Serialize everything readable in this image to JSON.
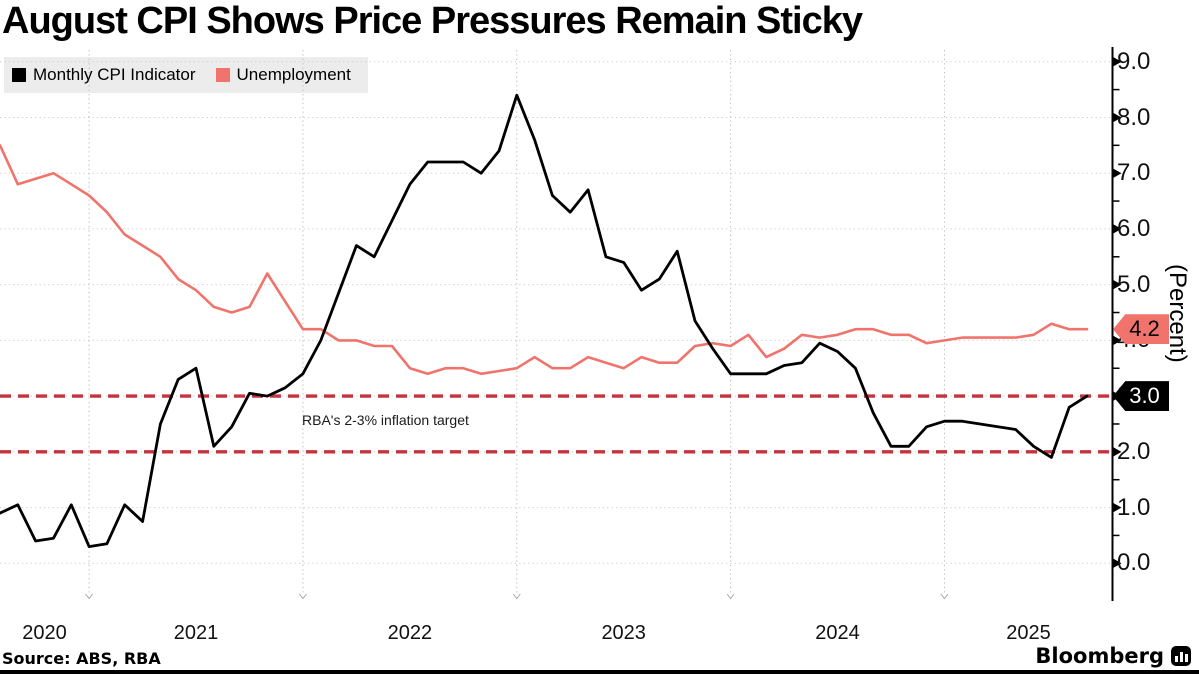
{
  "title": "August CPI Shows Price Pressures Remain Sticky",
  "legend": {
    "items": [
      {
        "label": "Monthly CPI Indicator",
        "color": "#000000"
      },
      {
        "label": "Unemployment",
        "color": "#f0746c"
      }
    ]
  },
  "annotation": "RBA's 2-3% inflation target",
  "badges": {
    "unemployment": {
      "text": "4.2",
      "value": 4.2,
      "bg": "#f0746c",
      "fg": "#000000"
    },
    "cpi": {
      "text": "3.0",
      "value": 3.0,
      "bg": "#000000",
      "fg": "#ffffff"
    }
  },
  "y_axis": {
    "title": "(Percent)",
    "tick_labels": [
      "9.0",
      "8.0",
      "7.0",
      "6.0",
      "5.0",
      "4.0",
      "3.0",
      "2.0",
      "1.0",
      "0.0"
    ]
  },
  "x_axis": {
    "year_labels": [
      "2020",
      "2021",
      "2022",
      "2023",
      "2024",
      "2025"
    ]
  },
  "source": "Source: ABS, RBA",
  "logo_text": "Bloomberg",
  "colors": {
    "cpi_line": "#000000",
    "unemployment_line": "#f0746c",
    "target_dash": "#c4343f",
    "grid_horizontal": "#cbcbcb",
    "grid_vertical": "#b8b8b8",
    "legend_bg": "#ececec"
  },
  "chart_data": {
    "type": "line",
    "title": "August CPI Shows Price Pressures Remain Sticky",
    "ylabel": "(Percent)",
    "ylim": [
      0,
      9.5
    ],
    "yticks": [
      0,
      1,
      2,
      3,
      4,
      5,
      6,
      7,
      8,
      9
    ],
    "grid": true,
    "legend_position": "top-left",
    "x_unit": "month",
    "months": [
      "2020-07",
      "2020-08",
      "2020-09",
      "2020-10",
      "2020-11",
      "2020-12",
      "2021-01",
      "2021-02",
      "2021-03",
      "2021-04",
      "2021-05",
      "2021-06",
      "2021-07",
      "2021-08",
      "2021-09",
      "2021-10",
      "2021-11",
      "2021-12",
      "2022-01",
      "2022-02",
      "2022-03",
      "2022-04",
      "2022-05",
      "2022-06",
      "2022-07",
      "2022-08",
      "2022-09",
      "2022-10",
      "2022-11",
      "2022-12",
      "2023-01",
      "2023-02",
      "2023-03",
      "2023-04",
      "2023-05",
      "2023-06",
      "2023-07",
      "2023-08",
      "2023-09",
      "2023-10",
      "2023-11",
      "2023-12",
      "2024-01",
      "2024-02",
      "2024-03",
      "2024-04",
      "2024-05",
      "2024-06",
      "2024-07",
      "2024-08",
      "2024-09",
      "2024-10",
      "2024-11",
      "2024-12",
      "2025-01",
      "2025-02",
      "2025-03",
      "2025-04",
      "2025-05",
      "2025-06",
      "2025-07",
      "2025-08"
    ],
    "series": [
      {
        "name": "Monthly CPI Indicator",
        "color": "#000000",
        "values": [
          0.9,
          1.05,
          0.4,
          0.45,
          1.05,
          0.3,
          0.35,
          1.05,
          0.75,
          2.5,
          3.3,
          3.5,
          2.1,
          2.45,
          3.05,
          3.0,
          3.15,
          3.4,
          4.0,
          4.85,
          5.7,
          5.5,
          6.15,
          6.8,
          7.2,
          7.2,
          7.2,
          7.0,
          7.4,
          8.4,
          7.6,
          6.6,
          6.3,
          6.7,
          5.5,
          5.4,
          4.9,
          5.1,
          5.6,
          4.35,
          3.85,
          3.4,
          3.4,
          3.4,
          3.55,
          3.6,
          3.95,
          3.8,
          3.5,
          2.7,
          2.1,
          2.1,
          2.45,
          2.55,
          2.55,
          2.5,
          2.45,
          2.4,
          2.1,
          1.9,
          2.8,
          3.0
        ]
      },
      {
        "name": "Unemployment",
        "color": "#f0746c",
        "values": [
          7.5,
          6.8,
          6.9,
          7.0,
          6.8,
          6.6,
          6.3,
          5.9,
          5.7,
          5.5,
          5.1,
          4.9,
          4.6,
          4.5,
          4.6,
          5.2,
          4.7,
          4.2,
          4.2,
          4.0,
          4.0,
          3.9,
          3.9,
          3.5,
          3.4,
          3.5,
          3.5,
          3.4,
          3.45,
          3.5,
          3.7,
          3.5,
          3.5,
          3.7,
          3.6,
          3.5,
          3.7,
          3.6,
          3.6,
          3.9,
          3.95,
          3.9,
          4.1,
          3.7,
          3.85,
          4.1,
          4.05,
          4.1,
          4.2,
          4.2,
          4.1,
          4.1,
          3.95,
          4.0,
          4.05,
          4.05,
          4.05,
          4.05,
          4.1,
          4.3,
          4.2,
          4.2
        ]
      }
    ],
    "target_lines": [
      {
        "value": 3.0,
        "style": "dashed",
        "color": "#c4343f"
      },
      {
        "value": 2.0,
        "style": "dashed",
        "color": "#c4343f"
      }
    ],
    "end_labels": [
      {
        "series": "Unemployment",
        "text": "4.2"
      },
      {
        "series": "Monthly CPI Indicator",
        "text": "3.0"
      }
    ]
  }
}
